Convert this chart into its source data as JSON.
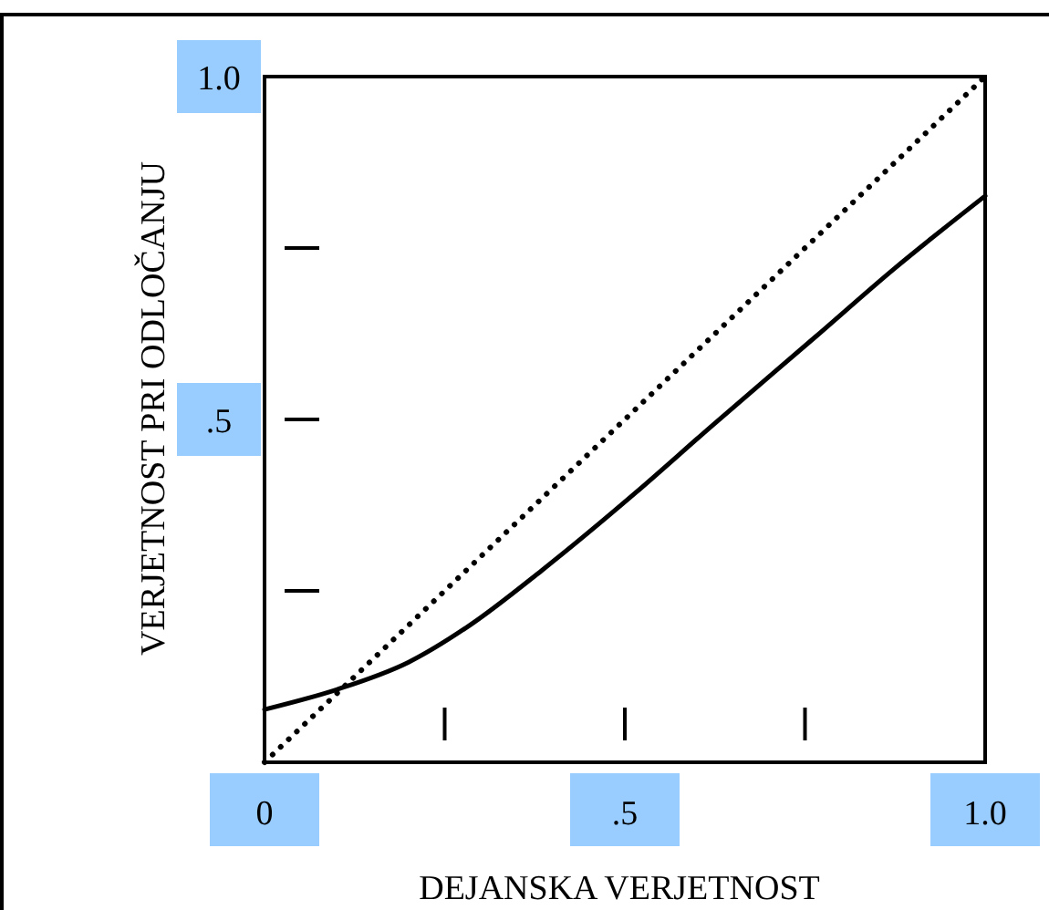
{
  "chart_data": {
    "type": "line",
    "xlabel": "DEJANSKA VERJETNOST",
    "ylabel": "VERJETNOST PRI ODLOČANJU",
    "xlim": [
      0,
      1
    ],
    "ylim": [
      0,
      1
    ],
    "xticks": [
      0,
      {
        "value": 0.5,
        "label": ".5"
      },
      {
        "value": 1,
        "label": "1.0"
      }
    ],
    "yticks": [
      {
        "value": 0.5,
        "label": ".5"
      },
      {
        "value": 1,
        "label": "1.0"
      }
    ],
    "grid": false,
    "series": [
      {
        "color": "#000000",
        "line_style": "solid",
        "x": [
          0,
          0.1,
          0.2,
          0.285,
          0.385,
          0.516,
          0.62,
          0.764,
          0.874,
          1
        ],
        "values": [
          0.077,
          0.106,
          0.146,
          0.2,
          0.28,
          0.394,
          0.49,
          0.62,
          0.72,
          0.826
        ]
      },
      {
        "color": "#000000",
        "line_style": "dotted",
        "x": [
          0,
          1
        ],
        "values": [
          0,
          1
        ]
      }
    ]
  }
}
